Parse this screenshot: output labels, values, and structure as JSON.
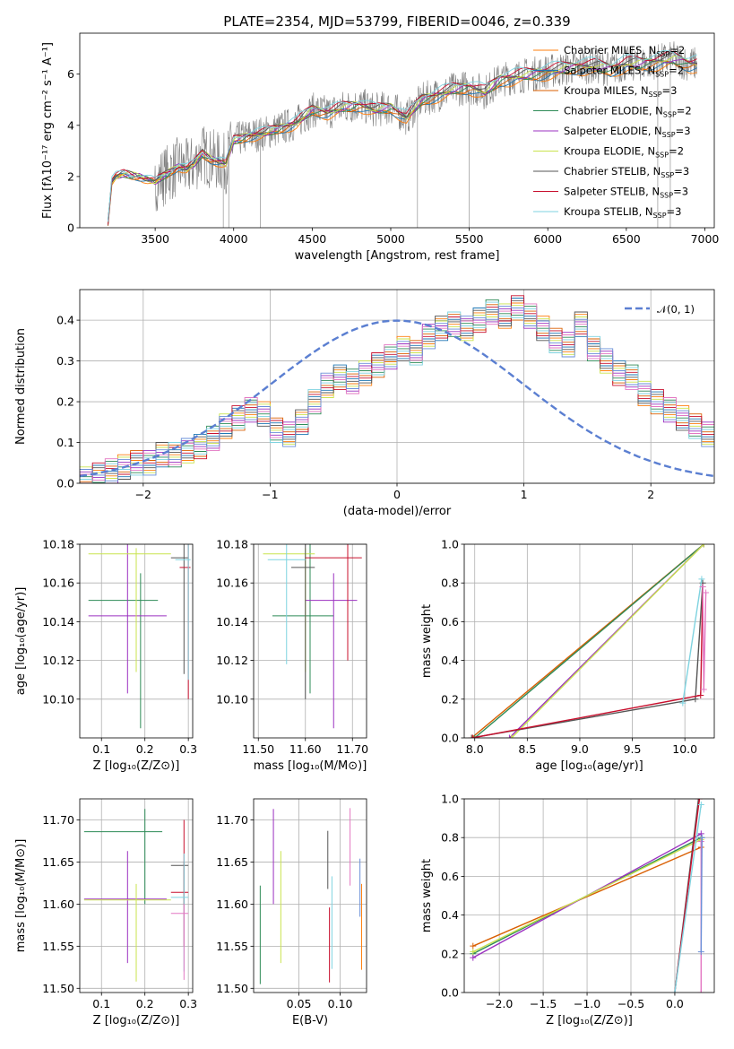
{
  "figure": {
    "title": "PLATE=2354, MJD=53799, FIBERID=0046, z=0.339"
  },
  "colors": {
    "data": "#7f7f7f",
    "models": [
      "#ff7f0e",
      "#1f77b4",
      "#d95f02",
      "#2e8b57",
      "#9b30c0",
      "#c9e34e",
      "#555555",
      "#c8102e",
      "#7fd3e0",
      "#e377c2",
      "#6a8fd8"
    ]
  },
  "chart_data": [
    {
      "id": "spectrum",
      "type": "line",
      "xlabel": "wavelength [Angstrom, rest frame]",
      "ylabel": "Flux [fλ10⁻¹⁷ erg cm⁻² s⁻¹ A⁻¹]",
      "xlim": [
        3020,
        7060
      ],
      "ylim": [
        0,
        7.6
      ],
      "xticks": [
        3500,
        4000,
        4500,
        5000,
        5500,
        6000,
        6500,
        7000
      ],
      "yticks": [
        0,
        2,
        4,
        6
      ],
      "grid": false,
      "legend_position": "top-right",
      "data_series": {
        "x": [
          3200,
          3220,
          3250,
          3300,
          3400,
          3500,
          3550,
          3600,
          3650,
          3700,
          3750,
          3800,
          3850,
          3900,
          3950,
          4000,
          4100,
          4200,
          4300,
          4400,
          4500,
          4600,
          4700,
          4800,
          4900,
          5000,
          5100,
          5200,
          5300,
          5400,
          5500,
          5600,
          5700,
          5800,
          5900,
          6000,
          6100,
          6200,
          6300,
          6400,
          6500,
          6600,
          6700,
          6800,
          6900
        ],
        "y": [
          0.2,
          1.8,
          2.0,
          2.1,
          2.0,
          1.8,
          2.0,
          2.2,
          2.4,
          2.3,
          2.5,
          2.9,
          2.7,
          2.6,
          2.5,
          3.4,
          3.6,
          3.7,
          3.9,
          4.1,
          4.6,
          4.5,
          4.7,
          4.8,
          4.6,
          4.7,
          4.3,
          5.0,
          5.2,
          5.4,
          5.5,
          5.3,
          5.8,
          5.9,
          6.0,
          6.1,
          6.2,
          6.3,
          6.3,
          6.2,
          6.4,
          6.4,
          6.5,
          6.6,
          6.4
        ]
      },
      "series": [
        {
          "name": "Chabrier MILES, N_SSP=2"
        },
        {
          "name": "Salpeter MILES, N_SSP=2"
        },
        {
          "name": "Kroupa MILES, N_SSP=3"
        },
        {
          "name": "Chabrier ELODIE, N_SSP=2"
        },
        {
          "name": "Salpeter ELODIE, N_SSP=3"
        },
        {
          "name": "Kroupa ELODIE, N_SSP=2"
        },
        {
          "name": "Chabrier STELIB, N_SSP=3"
        },
        {
          "name": "Salpeter STELIB, N_SSP=3"
        },
        {
          "name": "Kroupa STELIB, N_SSP=3"
        }
      ]
    },
    {
      "id": "residuals",
      "type": "bar",
      "xlabel": "(data-model)/error",
      "ylabel": "Normed distribution",
      "xlim": [
        -2.5,
        2.5
      ],
      "ylim": [
        0,
        0.475
      ],
      "xticks": [
        -2,
        -1,
        0,
        1,
        2
      ],
      "yticks": [
        0.0,
        0.1,
        0.2,
        0.3,
        0.4
      ],
      "grid": true,
      "legend_position": "top-right",
      "gaussian_label": "𝒩(0, 1)",
      "histogram": {
        "bin_edges_start": -2.5,
        "bin_width": 0.1,
        "values": [
          0.01,
          0.02,
          0.03,
          0.04,
          0.05,
          0.05,
          0.07,
          0.07,
          0.08,
          0.09,
          0.11,
          0.14,
          0.16,
          0.18,
          0.17,
          0.13,
          0.12,
          0.15,
          0.2,
          0.24,
          0.26,
          0.25,
          0.27,
          0.29,
          0.31,
          0.33,
          0.32,
          0.36,
          0.38,
          0.39,
          0.38,
          0.4,
          0.42,
          0.41,
          0.43,
          0.41,
          0.38,
          0.35,
          0.34,
          0.39,
          0.33,
          0.3,
          0.27,
          0.26,
          0.22,
          0.2,
          0.18,
          0.16,
          0.14,
          0.12
        ]
      }
    },
    {
      "id": "age-vs-Z",
      "type": "scatter",
      "xlabel": "Z [log₁₀(Z/Z⊙)]",
      "ylabel": "age  [log₁₀(age/yr)]",
      "xlim": [
        0.05,
        0.31
      ],
      "ylim": [
        10.08,
        10.18
      ],
      "xticks": [
        0.1,
        0.2,
        0.3
      ],
      "yticks": [
        10.1,
        10.12,
        10.14,
        10.16,
        10.18
      ],
      "grid": true,
      "points": [
        {
          "x": 0.19,
          "y": 10.151,
          "xerr": [
            0.07,
            0.23
          ],
          "yerr": [
            10.085,
            10.165
          ]
        },
        {
          "x": 0.16,
          "y": 10.143,
          "xerr": [
            0.07,
            0.25
          ],
          "yerr": [
            10.103,
            10.18
          ]
        },
        {
          "x": 0.18,
          "y": 10.175,
          "xerr": [
            0.07,
            0.26
          ],
          "yerr": [
            10.114,
            10.178
          ]
        },
        {
          "x": 0.29,
          "y": 10.173,
          "xerr": [
            0.26,
            0.3
          ],
          "yerr": [
            10.113,
            10.18
          ]
        },
        {
          "x": 0.3,
          "y": 10.168,
          "xerr": [
            0.28,
            0.305
          ],
          "yerr": [
            10.1,
            10.18
          ]
        },
        {
          "x": 0.3,
          "y": 10.172,
          "xerr": [
            0.27,
            0.305
          ],
          "yerr": [
            10.11,
            10.18
          ]
        }
      ]
    },
    {
      "id": "age-vs-mass",
      "type": "scatter",
      "xlabel": "mass [log₁₀(M/M⊙)]",
      "ylabel": "",
      "xlim": [
        11.49,
        11.73
      ],
      "ylim": [
        10.08,
        10.18
      ],
      "xticks": [
        11.5,
        11.6,
        11.7
      ],
      "yticks": [
        10.1,
        10.12,
        10.14,
        10.16,
        10.18
      ],
      "grid": true,
      "points": [
        {
          "x": 11.61,
          "y": 10.143,
          "xerr": [
            11.53,
            11.66
          ],
          "yerr": [
            10.103,
            10.18
          ]
        },
        {
          "x": 11.66,
          "y": 10.151,
          "xerr": [
            11.6,
            11.71
          ],
          "yerr": [
            10.085,
            10.165
          ]
        },
        {
          "x": 11.6,
          "y": 10.175,
          "xerr": [
            11.51,
            11.62
          ],
          "yerr": [
            10.114,
            10.178
          ]
        },
        {
          "x": 11.6,
          "y": 10.168,
          "xerr": [
            11.57,
            11.62
          ],
          "yerr": [
            10.1,
            10.18
          ]
        },
        {
          "x": 11.69,
          "y": 10.173,
          "xerr": [
            11.6,
            11.72
          ],
          "yerr": [
            10.12,
            10.18
          ]
        },
        {
          "x": 11.56,
          "y": 10.172,
          "xerr": [
            11.52,
            11.6
          ],
          "yerr": [
            10.118,
            10.18
          ]
        }
      ]
    },
    {
      "id": "mass-weight-vs-age",
      "type": "line",
      "xlabel": "age  [log₁₀(age/yr)]",
      "ylabel": "mass weight",
      "xlim": [
        7.9,
        10.28
      ],
      "ylim": [
        0,
        1.0
      ],
      "xticks": [
        8.0,
        8.5,
        9.0,
        9.5,
        10.0
      ],
      "yticks": [
        0.0,
        0.2,
        0.4,
        0.6,
        0.8,
        1.0
      ],
      "grid": true,
      "series": [
        {
          "x": [
            7.97,
            10.18
          ],
          "y": [
            0.0,
            1.0
          ]
        },
        {
          "x": [
            8.0,
            10.18
          ],
          "y": [
            0.0,
            1.0
          ]
        },
        {
          "x": [
            8.33,
            10.18
          ],
          "y": [
            0.0,
            1.0
          ]
        },
        {
          "x": [
            8.35,
            10.18
          ],
          "y": [
            0.0,
            1.0
          ]
        },
        {
          "x": [
            7.97,
            10.1,
            10.17
          ],
          "y": [
            0.0,
            0.2,
            0.8
          ]
        },
        {
          "x": [
            7.98,
            10.15,
            10.17
          ],
          "y": [
            0.0,
            0.22,
            0.78
          ]
        },
        {
          "x": [
            9.98,
            10.16
          ],
          "y": [
            0.18,
            0.82
          ]
        },
        {
          "x": [
            10.17,
            10.18,
            10.2
          ],
          "y": [
            0.78,
            0.25,
            0.75
          ]
        }
      ]
    },
    {
      "id": "mass-vs-Z",
      "type": "scatter",
      "xlabel": "Z [log₁₀(Z/Z⊙)]",
      "ylabel": "mass [log₁₀(M/M⊙)]",
      "xlim": [
        0.05,
        0.31
      ],
      "ylim": [
        11.495,
        11.725
      ],
      "xticks": [
        0.1,
        0.2,
        0.3
      ],
      "yticks": [
        11.5,
        11.55,
        11.6,
        11.65,
        11.7
      ],
      "grid": true,
      "points": [
        {
          "x": 0.2,
          "y": 11.686,
          "xerr": [
            0.06,
            0.24
          ],
          "yerr": [
            11.6,
            11.713
          ]
        },
        {
          "x": 0.16,
          "y": 11.606,
          "xerr": [
            0.06,
            0.25
          ],
          "yerr": [
            11.53,
            11.663
          ]
        },
        {
          "x": 0.18,
          "y": 11.605,
          "xerr": [
            0.06,
            0.26
          ],
          "yerr": [
            11.508,
            11.624
          ]
        },
        {
          "x": 0.29,
          "y": 11.646,
          "xerr": [
            0.26,
            0.3
          ],
          "yerr": [
            11.6,
            11.65
          ]
        },
        {
          "x": 0.29,
          "y": 11.614,
          "xerr": [
            0.26,
            0.3
          ],
          "yerr": [
            11.55,
            11.7
          ]
        },
        {
          "x": 0.29,
          "y": 11.608,
          "xerr": [
            0.26,
            0.3
          ],
          "yerr": [
            11.52,
            11.66
          ]
        },
        {
          "x": 0.29,
          "y": 11.589,
          "xerr": [
            0.26,
            0.3
          ],
          "yerr": [
            11.51,
            11.6
          ]
        }
      ]
    },
    {
      "id": "mass-vs-EBV",
      "type": "scatter",
      "xlabel": "E(B-V)",
      "ylabel": "",
      "xlim": [
        -0.005,
        0.132
      ],
      "ylim": [
        11.495,
        11.725
      ],
      "xticks": [
        0.05,
        0.1
      ],
      "yticks": [
        11.5,
        11.55,
        11.6,
        11.65,
        11.7
      ],
      "grid": true,
      "points": [
        {
          "x": 0.003,
          "yerr": [
            11.505,
            11.622
          ]
        },
        {
          "x": 0.019,
          "yerr": [
            11.6,
            11.713
          ]
        },
        {
          "x": 0.028,
          "yerr": [
            11.53,
            11.663
          ]
        },
        {
          "x": 0.085,
          "yerr": [
            11.618,
            11.687
          ]
        },
        {
          "x": 0.087,
          "yerr": [
            11.507,
            11.596
          ]
        },
        {
          "x": 0.09,
          "yerr": [
            11.523,
            11.633
          ]
        },
        {
          "x": 0.112,
          "yerr": [
            11.622,
            11.714
          ]
        },
        {
          "x": 0.124,
          "yerr": [
            11.585,
            11.654
          ]
        },
        {
          "x": 0.126,
          "yerr": [
            11.522,
            11.624
          ]
        }
      ]
    },
    {
      "id": "mass-weight-vs-Z",
      "type": "line",
      "xlabel": "Z [log₁₀(Z/Z⊙)]",
      "ylabel": "mass weight",
      "xlim": [
        -2.4,
        0.45
      ],
      "ylim": [
        0,
        1.0
      ],
      "xticks": [
        -2.0,
        -1.5,
        -1.0,
        -0.5,
        0.0
      ],
      "yticks": [
        0.0,
        0.2,
        0.4,
        0.6,
        0.8,
        1.0
      ],
      "grid": true,
      "series": [
        {
          "x": [
            -2.3,
            0.3
          ],
          "y": [
            0.24,
            0.75
          ]
        },
        {
          "x": [
            -2.3,
            0.3
          ],
          "y": [
            0.2,
            0.8
          ]
        },
        {
          "x": [
            -2.3,
            0.3
          ],
          "y": [
            0.18,
            0.82
          ]
        },
        {
          "x": [
            -2.3,
            0.3
          ],
          "y": [
            0.21,
            0.79
          ]
        },
        {
          "x": [
            0.0,
            0.27
          ],
          "y": [
            0.0,
            1.0
          ]
        },
        {
          "x": [
            0.0,
            0.28
          ],
          "y": [
            0.0,
            1.0
          ]
        },
        {
          "x": [
            0.0,
            0.3
          ],
          "y": [
            0.0,
            0.97
          ]
        },
        {
          "x": [
            0.3,
            0.3
          ],
          "y": [
            0.0,
            0.78
          ]
        },
        {
          "x": [
            0.3,
            0.31
          ],
          "y": [
            0.21,
            0.8
          ]
        }
      ]
    }
  ]
}
